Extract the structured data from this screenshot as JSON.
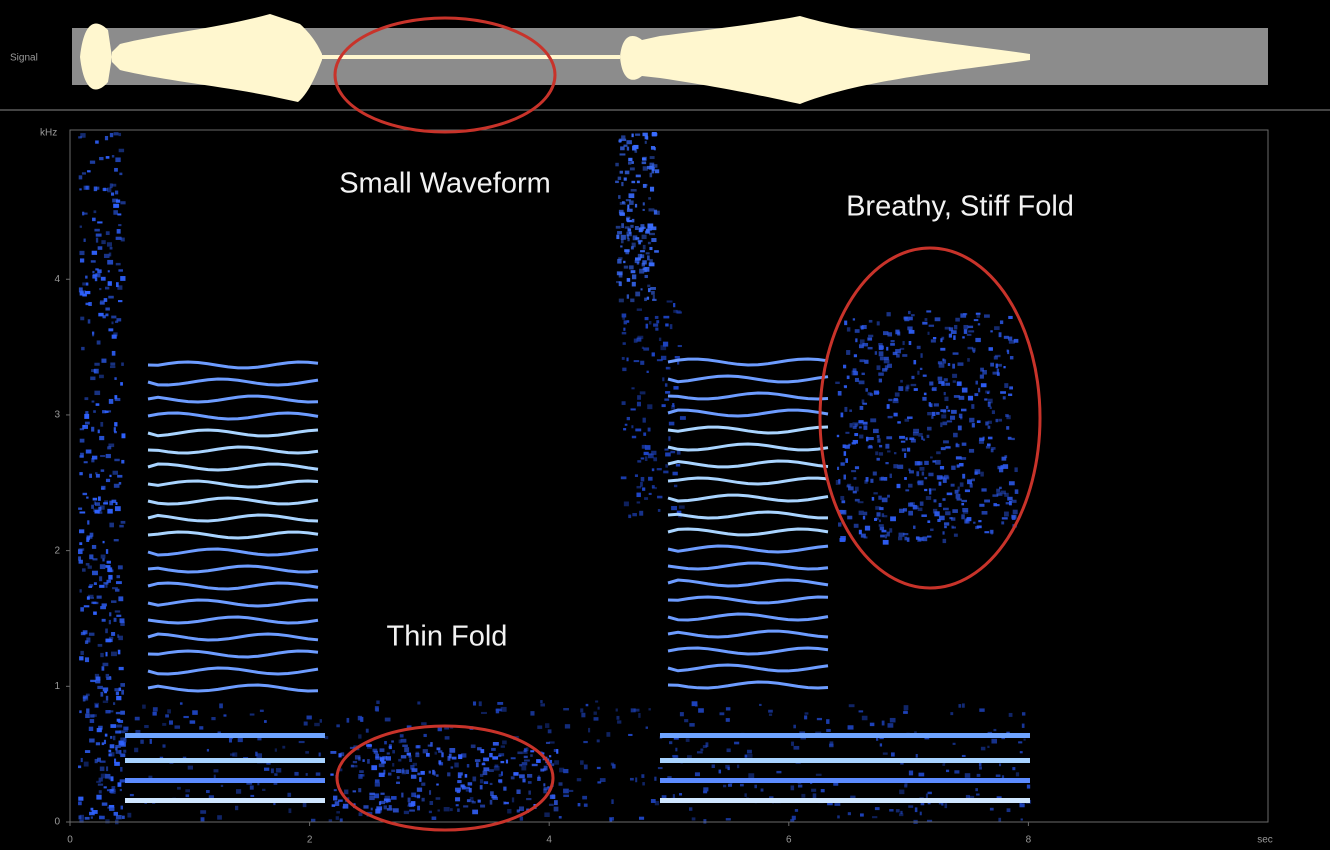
{
  "chart_data": {
    "type": "spectrogram",
    "signal_label": "Signal",
    "x_label": "sec",
    "y_label": "kHz",
    "xlim": [
      0,
      10
    ],
    "ylim": [
      0,
      5.1
    ],
    "xticks": [
      0,
      2,
      4,
      6,
      8
    ],
    "yticks": [
      0,
      1,
      2,
      3,
      4
    ],
    "annotations": [
      "Small Waveform",
      "Breathy, Stiff Fold",
      "Thin Fold"
    ]
  }
}
